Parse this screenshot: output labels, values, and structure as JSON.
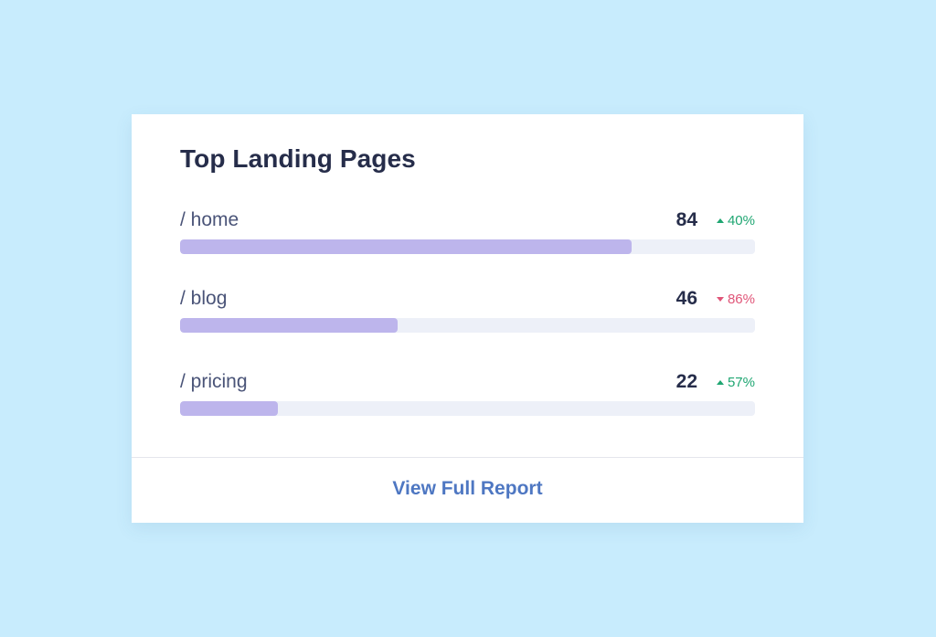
{
  "widget": {
    "title": "Top Landing Pages",
    "rows": [
      {
        "page": "/ home",
        "count": "84",
        "delta": "40%",
        "direction": "up",
        "bar_fraction": 0.785
      },
      {
        "page": "/ blog",
        "count": "46",
        "delta": "86%",
        "direction": "down",
        "bar_fraction": 0.378
      },
      {
        "page": "/ pricing",
        "count": "22",
        "delta": "57%",
        "direction": "up",
        "bar_fraction": 0.17
      }
    ],
    "footer_link": "View Full Report"
  },
  "colors": {
    "background": "#c8ecfd",
    "bar_fill": "#bdb5ec",
    "bar_track": "#edf0f8",
    "up": "#1fa672",
    "down": "#e05578",
    "link": "#4e77c2",
    "title": "#262d4a"
  },
  "icons": {
    "up": "triangle-up-icon",
    "down": "triangle-down-icon"
  }
}
